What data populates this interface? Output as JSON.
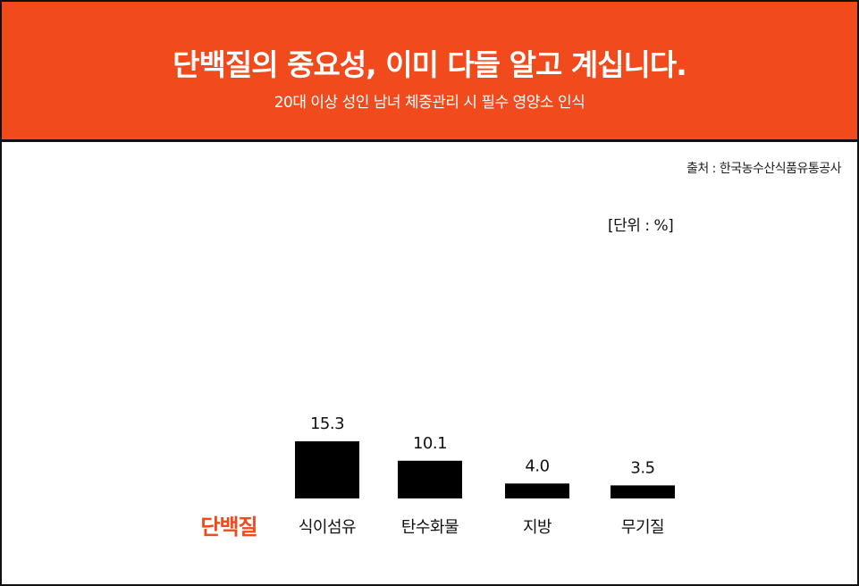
{
  "header": {
    "title": "단백질의 중요성, 이미 다들 알고 계십니다.",
    "subtitle": "20대 이상 성인 남녀 체중관리 시 필수 영양소 인식"
  },
  "source": "출처 : 한국농수산식품유통공사",
  "unit": "[단위 : %]",
  "colors": {
    "accent": "#f04a1d",
    "bar": "#000000",
    "text": "#111111"
  },
  "chart_data": {
    "type": "bar",
    "row_label": "단백질",
    "categories": [
      "식이섬유",
      "탄수화물",
      "지방",
      "무기질"
    ],
    "values": [
      15.3,
      10.1,
      4.0,
      3.5
    ],
    "value_labels": [
      "15.3",
      "10.1",
      "4.0",
      "3.5"
    ],
    "grid": false,
    "legend": "none"
  }
}
